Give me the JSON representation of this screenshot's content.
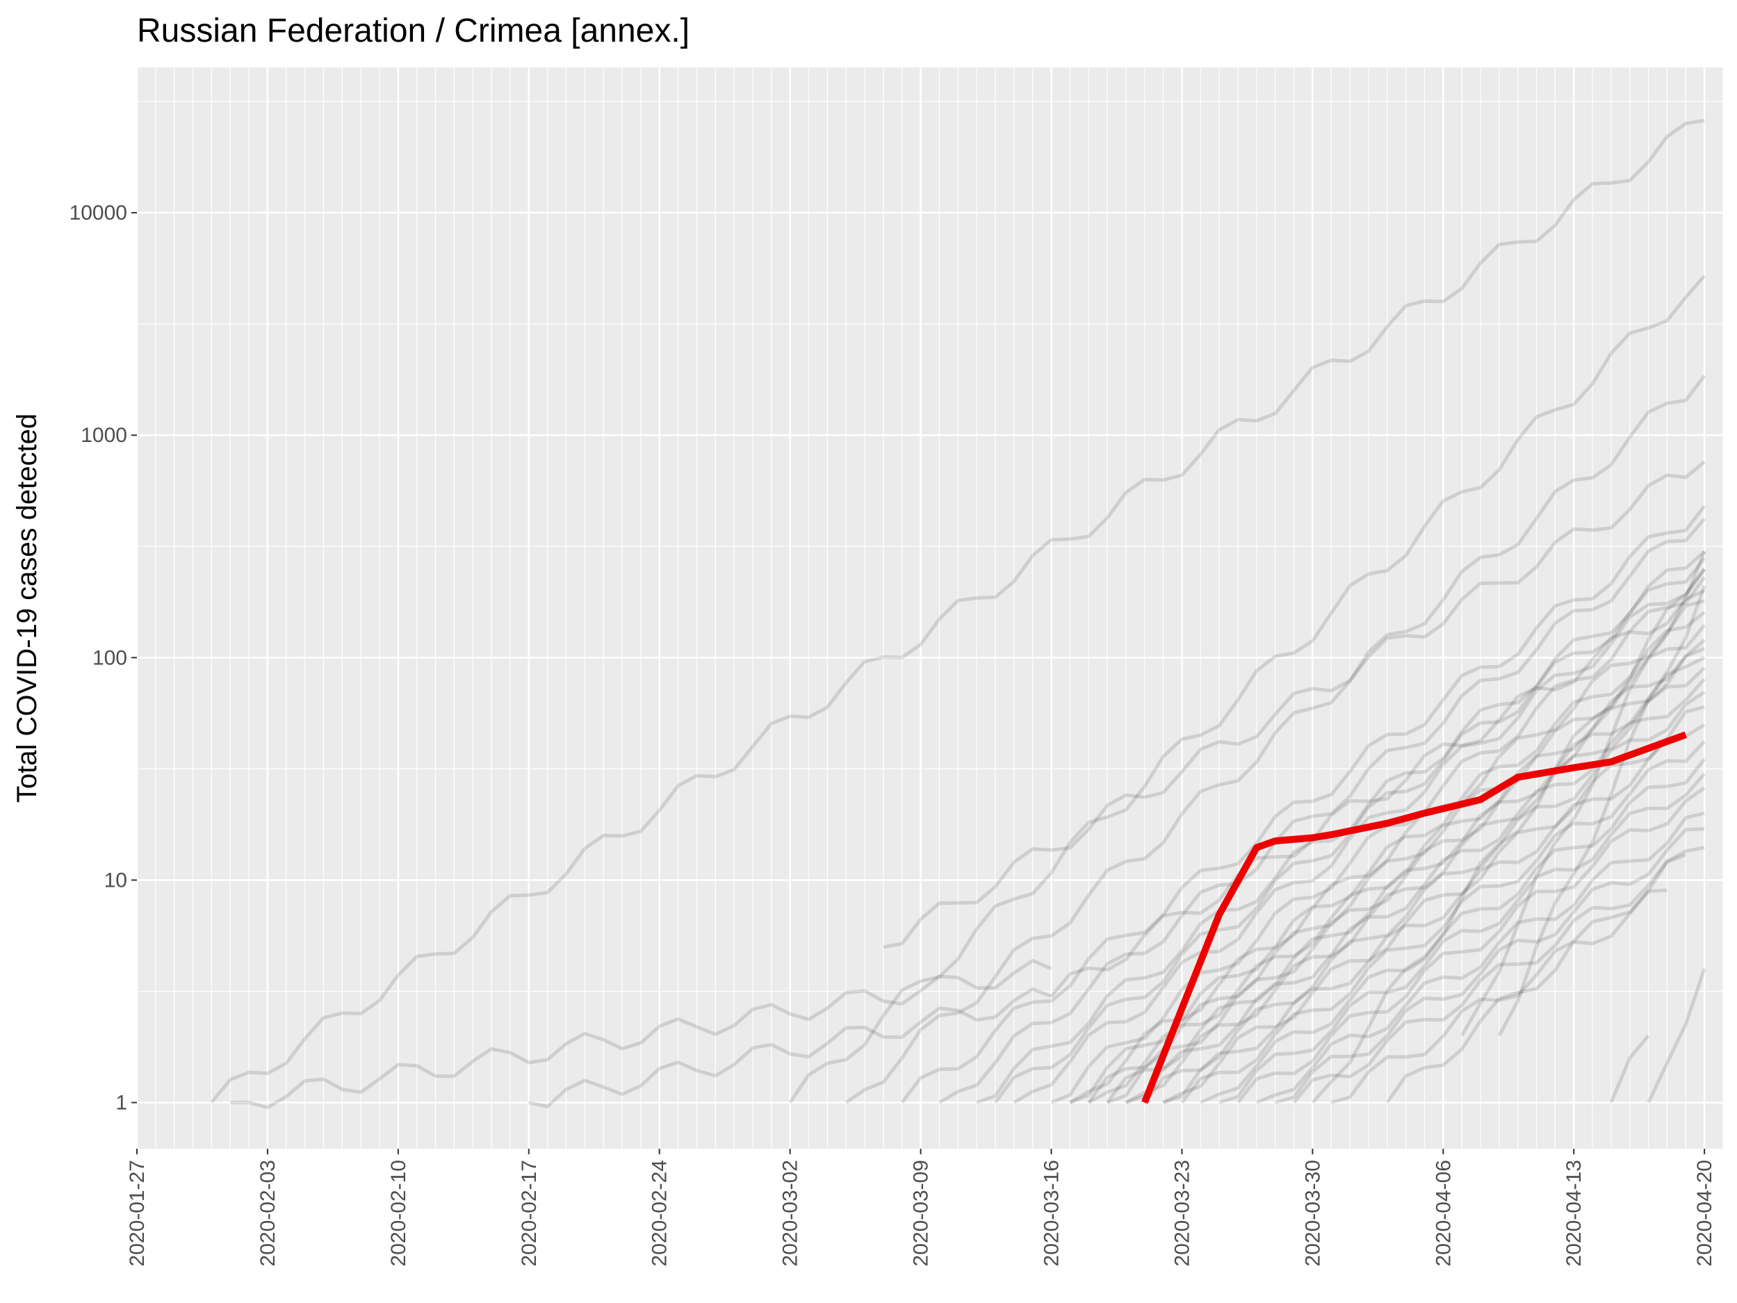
{
  "chart_data": {
    "type": "line",
    "title": "Russian Federation / Crimea [annex.]",
    "xlabel": "",
    "ylabel": "Total COVID-19 cases detected",
    "y_scale": "log10",
    "ylim": [
      0.62,
      45000
    ],
    "xlim": [
      "2020-01-27",
      "2020-04-21"
    ],
    "x_ticks": [
      "2020-01-27",
      "2020-02-03",
      "2020-02-10",
      "2020-02-17",
      "2020-02-24",
      "2020-03-02",
      "2020-03-09",
      "2020-03-16",
      "2020-03-23",
      "2020-03-30",
      "2020-04-06",
      "2020-04-13",
      "2020-04-20"
    ],
    "y_ticks": [
      1,
      10,
      100,
      1000,
      10000
    ],
    "y_tick_labels": [
      "1",
      "10",
      "100",
      "1000",
      "10000"
    ],
    "grid": true,
    "legend": "none",
    "colors": {
      "panel": "#ebebeb",
      "grid": "#ffffff",
      "highlight": "#ee0000",
      "other_regions": "#000000"
    },
    "highlight": {
      "name": "Crimea",
      "points": [
        [
          "2020-03-21",
          1
        ],
        [
          "2020-03-25",
          7
        ],
        [
          "2020-03-27",
          14
        ],
        [
          "2020-03-28",
          15
        ],
        [
          "2020-03-30",
          15.5
        ],
        [
          "2020-03-31",
          16
        ],
        [
          "2020-04-03",
          18
        ],
        [
          "2020-04-05",
          20
        ],
        [
          "2020-04-08",
          23
        ],
        [
          "2020-04-10",
          29
        ],
        [
          "2020-04-13",
          32
        ],
        [
          "2020-04-15",
          34
        ],
        [
          "2020-04-18",
          42
        ],
        [
          "2020-04-19",
          45
        ]
      ]
    },
    "background_series": [
      {
        "start": "2020-01-31",
        "end": "2020-04-20",
        "v0": 1,
        "v1": 26000
      },
      {
        "start": "2020-02-01",
        "end": "2020-03-16",
        "v0": 1,
        "v1": 4
      },
      {
        "start": "2020-02-17",
        "end": "2020-03-16",
        "v0": 1,
        "v1": 3
      },
      {
        "start": "2020-03-02",
        "end": "2020-04-20",
        "v0": 1,
        "v1": 5200
      },
      {
        "start": "2020-03-05",
        "end": "2020-04-20",
        "v0": 1,
        "v1": 1850
      },
      {
        "start": "2020-03-07",
        "end": "2020-04-20",
        "v0": 5,
        "v1": 760
      },
      {
        "start": "2020-03-08",
        "end": "2020-04-20",
        "v0": 1,
        "v1": 480
      },
      {
        "start": "2020-03-10",
        "end": "2020-04-20",
        "v0": 1,
        "v1": 420
      },
      {
        "start": "2020-03-12",
        "end": "2020-04-20",
        "v0": 1,
        "v1": 300
      },
      {
        "start": "2020-03-13",
        "end": "2020-04-20",
        "v0": 1,
        "v1": 280
      },
      {
        "start": "2020-03-14",
        "end": "2020-04-20",
        "v0": 1,
        "v1": 250
      },
      {
        "start": "2020-03-16",
        "end": "2020-04-20",
        "v0": 1,
        "v1": 230
      },
      {
        "start": "2020-03-16",
        "end": "2020-04-20",
        "v0": 3,
        "v1": 200
      },
      {
        "start": "2020-03-17",
        "end": "2020-04-20",
        "v0": 1,
        "v1": 180
      },
      {
        "start": "2020-03-17",
        "end": "2020-04-20",
        "v0": 1,
        "v1": 160
      },
      {
        "start": "2020-03-18",
        "end": "2020-04-20",
        "v0": 1,
        "v1": 140
      },
      {
        "start": "2020-03-18",
        "end": "2020-04-20",
        "v0": 1,
        "v1": 120
      },
      {
        "start": "2020-03-19",
        "end": "2020-04-20",
        "v0": 1,
        "v1": 110
      },
      {
        "start": "2020-03-19",
        "end": "2020-04-20",
        "v0": 1,
        "v1": 100
      },
      {
        "start": "2020-03-20",
        "end": "2020-04-20",
        "v0": 1,
        "v1": 90
      },
      {
        "start": "2020-03-20",
        "end": "2020-04-20",
        "v0": 1,
        "v1": 80
      },
      {
        "start": "2020-03-21",
        "end": "2020-04-20",
        "v0": 1,
        "v1": 70
      },
      {
        "start": "2020-03-22",
        "end": "2020-04-20",
        "v0": 1,
        "v1": 60
      },
      {
        "start": "2020-03-22",
        "end": "2020-04-20",
        "v0": 1,
        "v1": 50
      },
      {
        "start": "2020-03-23",
        "end": "2020-04-20",
        "v0": 1,
        "v1": 42
      },
      {
        "start": "2020-03-24",
        "end": "2020-04-20",
        "v0": 1,
        "v1": 35
      },
      {
        "start": "2020-03-25",
        "end": "2020-04-20",
        "v0": 1,
        "v1": 30
      },
      {
        "start": "2020-03-26",
        "end": "2020-04-20",
        "v0": 1,
        "v1": 26
      },
      {
        "start": "2020-03-27",
        "end": "2020-04-20",
        "v0": 1,
        "v1": 20
      },
      {
        "start": "2020-03-28",
        "end": "2020-04-20",
        "v0": 1,
        "v1": 17
      },
      {
        "start": "2020-03-29",
        "end": "2020-04-20",
        "v0": 1,
        "v1": 14
      },
      {
        "start": "2020-03-30",
        "end": "2020-04-20",
        "v0": 1,
        "v1": 250
      },
      {
        "start": "2020-03-31",
        "end": "2020-04-18",
        "v0": 1,
        "v1": 9
      },
      {
        "start": "2020-04-03",
        "end": "2020-04-19",
        "v0": 1,
        "v1": 13
      },
      {
        "start": "2020-04-07",
        "end": "2020-04-20",
        "v0": 2,
        "v1": 300
      },
      {
        "start": "2020-04-09",
        "end": "2020-04-20",
        "v0": 2,
        "v1": 210
      },
      {
        "start": "2020-04-15",
        "end": "2020-04-17",
        "v0": 1,
        "v1": 2
      },
      {
        "start": "2020-04-17",
        "end": "2020-04-20",
        "v0": 1,
        "v1": 4
      }
    ]
  }
}
